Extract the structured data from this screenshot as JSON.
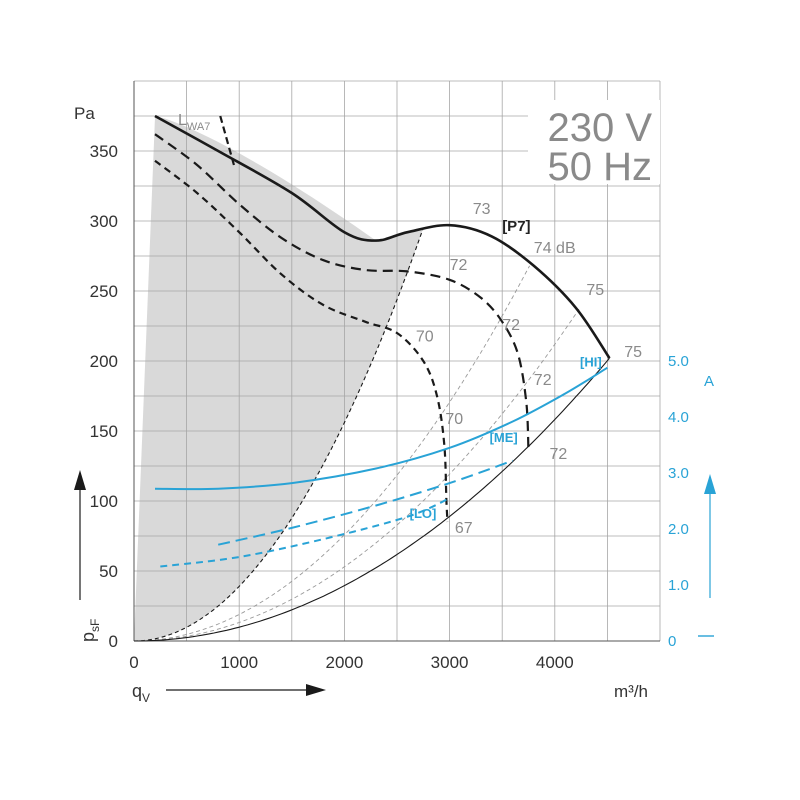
{
  "chart_data": {
    "type": "line",
    "supply": "230 V",
    "frequency": "50 Hz",
    "xunit": "m³/h",
    "y_left_unit": "Pa",
    "y_right_unit": "A",
    "x_axis_label": "q",
    "x_axis_label_sub": "V",
    "y_axis_label": "p",
    "y_axis_label_sub": "sF",
    "sound_label": "L",
    "sound_label_sub": "WA7",
    "xlim": [
      0,
      5000
    ],
    "ylim": [
      0,
      400
    ],
    "y_right_lim": [
      0,
      5.0
    ],
    "x_ticks": [
      "0",
      "1000",
      "2000",
      "3000",
      "4000"
    ],
    "x_tick_values": [
      0,
      1000,
      2000,
      3000,
      4000
    ],
    "y_ticks": [
      "0",
      "50",
      "100",
      "150",
      "200",
      "250",
      "300",
      "350"
    ],
    "y_tick_values": [
      0,
      50,
      100,
      150,
      200,
      250,
      300,
      350
    ],
    "y_right_ticks": [
      "0",
      "1.0",
      "2.0",
      "3.0",
      "4.0",
      "5.0"
    ],
    "y_right_tick_values": [
      0,
      1.0,
      2.0,
      3.0,
      4.0,
      5.0
    ],
    "pressure_series": [
      {
        "label": "[P7]",
        "style": "solid",
        "x": [
          200,
          800,
          1500,
          2000,
          2300,
          2600,
          3000,
          3400,
          3800,
          4200,
          4520
        ],
        "y": [
          375,
          350,
          320,
          292,
          286,
          292,
          297,
          289,
          268,
          238,
          202
        ]
      },
      {
        "label": "",
        "style": "dashed",
        "x": [
          200,
          600,
          1000,
          1400,
          1800,
          2200,
          2600,
          3000,
          3300,
          3500,
          3650,
          3730,
          3750
        ],
        "y": [
          362,
          340,
          312,
          288,
          272,
          265,
          264,
          258,
          245,
          228,
          205,
          170,
          135
        ]
      },
      {
        "label": "",
        "style": "dashed",
        "x": [
          200,
          600,
          1000,
          1400,
          1800,
          2200,
          2500,
          2750,
          2880,
          2950,
          2970,
          2980
        ],
        "y": [
          343,
          320,
          292,
          262,
          240,
          228,
          220,
          200,
          175,
          140,
          100,
          85
        ]
      }
    ],
    "current_series": [
      {
        "label": "[HI]",
        "style": "solid",
        "x": [
          200,
          800,
          1500,
          2300,
          3000,
          3600,
          4100,
          4500
        ],
        "y": [
          2.72,
          2.72,
          2.82,
          3.08,
          3.45,
          3.92,
          4.42,
          4.88
        ]
      },
      {
        "label": "[ME]",
        "style": "dashed",
        "x": [
          800,
          1500,
          2300,
          3000,
          3600
        ],
        "y": [
          1.72,
          2.02,
          2.42,
          2.82,
          3.22
        ]
      },
      {
        "label": "[LO]",
        "style": "dashed",
        "x": [
          250,
          1000,
          1800,
          2600,
          3000
        ],
        "y": [
          1.33,
          1.5,
          1.82,
          2.22,
          2.55
        ]
      }
    ],
    "sound_labels": [
      {
        "text": "73",
        "x": 3220,
        "y": 305
      },
      {
        "text": "74 dB",
        "x": 3800,
        "y": 277
      },
      {
        "text": "75",
        "x": 4300,
        "y": 247
      },
      {
        "text": "75",
        "x": 4660,
        "y": 203
      },
      {
        "text": "72",
        "x": 3000,
        "y": 265
      },
      {
        "text": "72",
        "x": 3500,
        "y": 222
      },
      {
        "text": "72",
        "x": 3800,
        "y": 183
      },
      {
        "text": "72",
        "x": 3950,
        "y": 130
      },
      {
        "text": "70",
        "x": 2680,
        "y": 214
      },
      {
        "text": "70",
        "x": 2960,
        "y": 155
      },
      {
        "text": "67",
        "x": 3050,
        "y": 77
      }
    ]
  },
  "colors": {
    "dark": "#1a1a1a",
    "accent": "#29a3d6",
    "grid": "#a6a6a6",
    "shade": "#d9d9d9",
    "label_gray": "#8a8a8a"
  }
}
